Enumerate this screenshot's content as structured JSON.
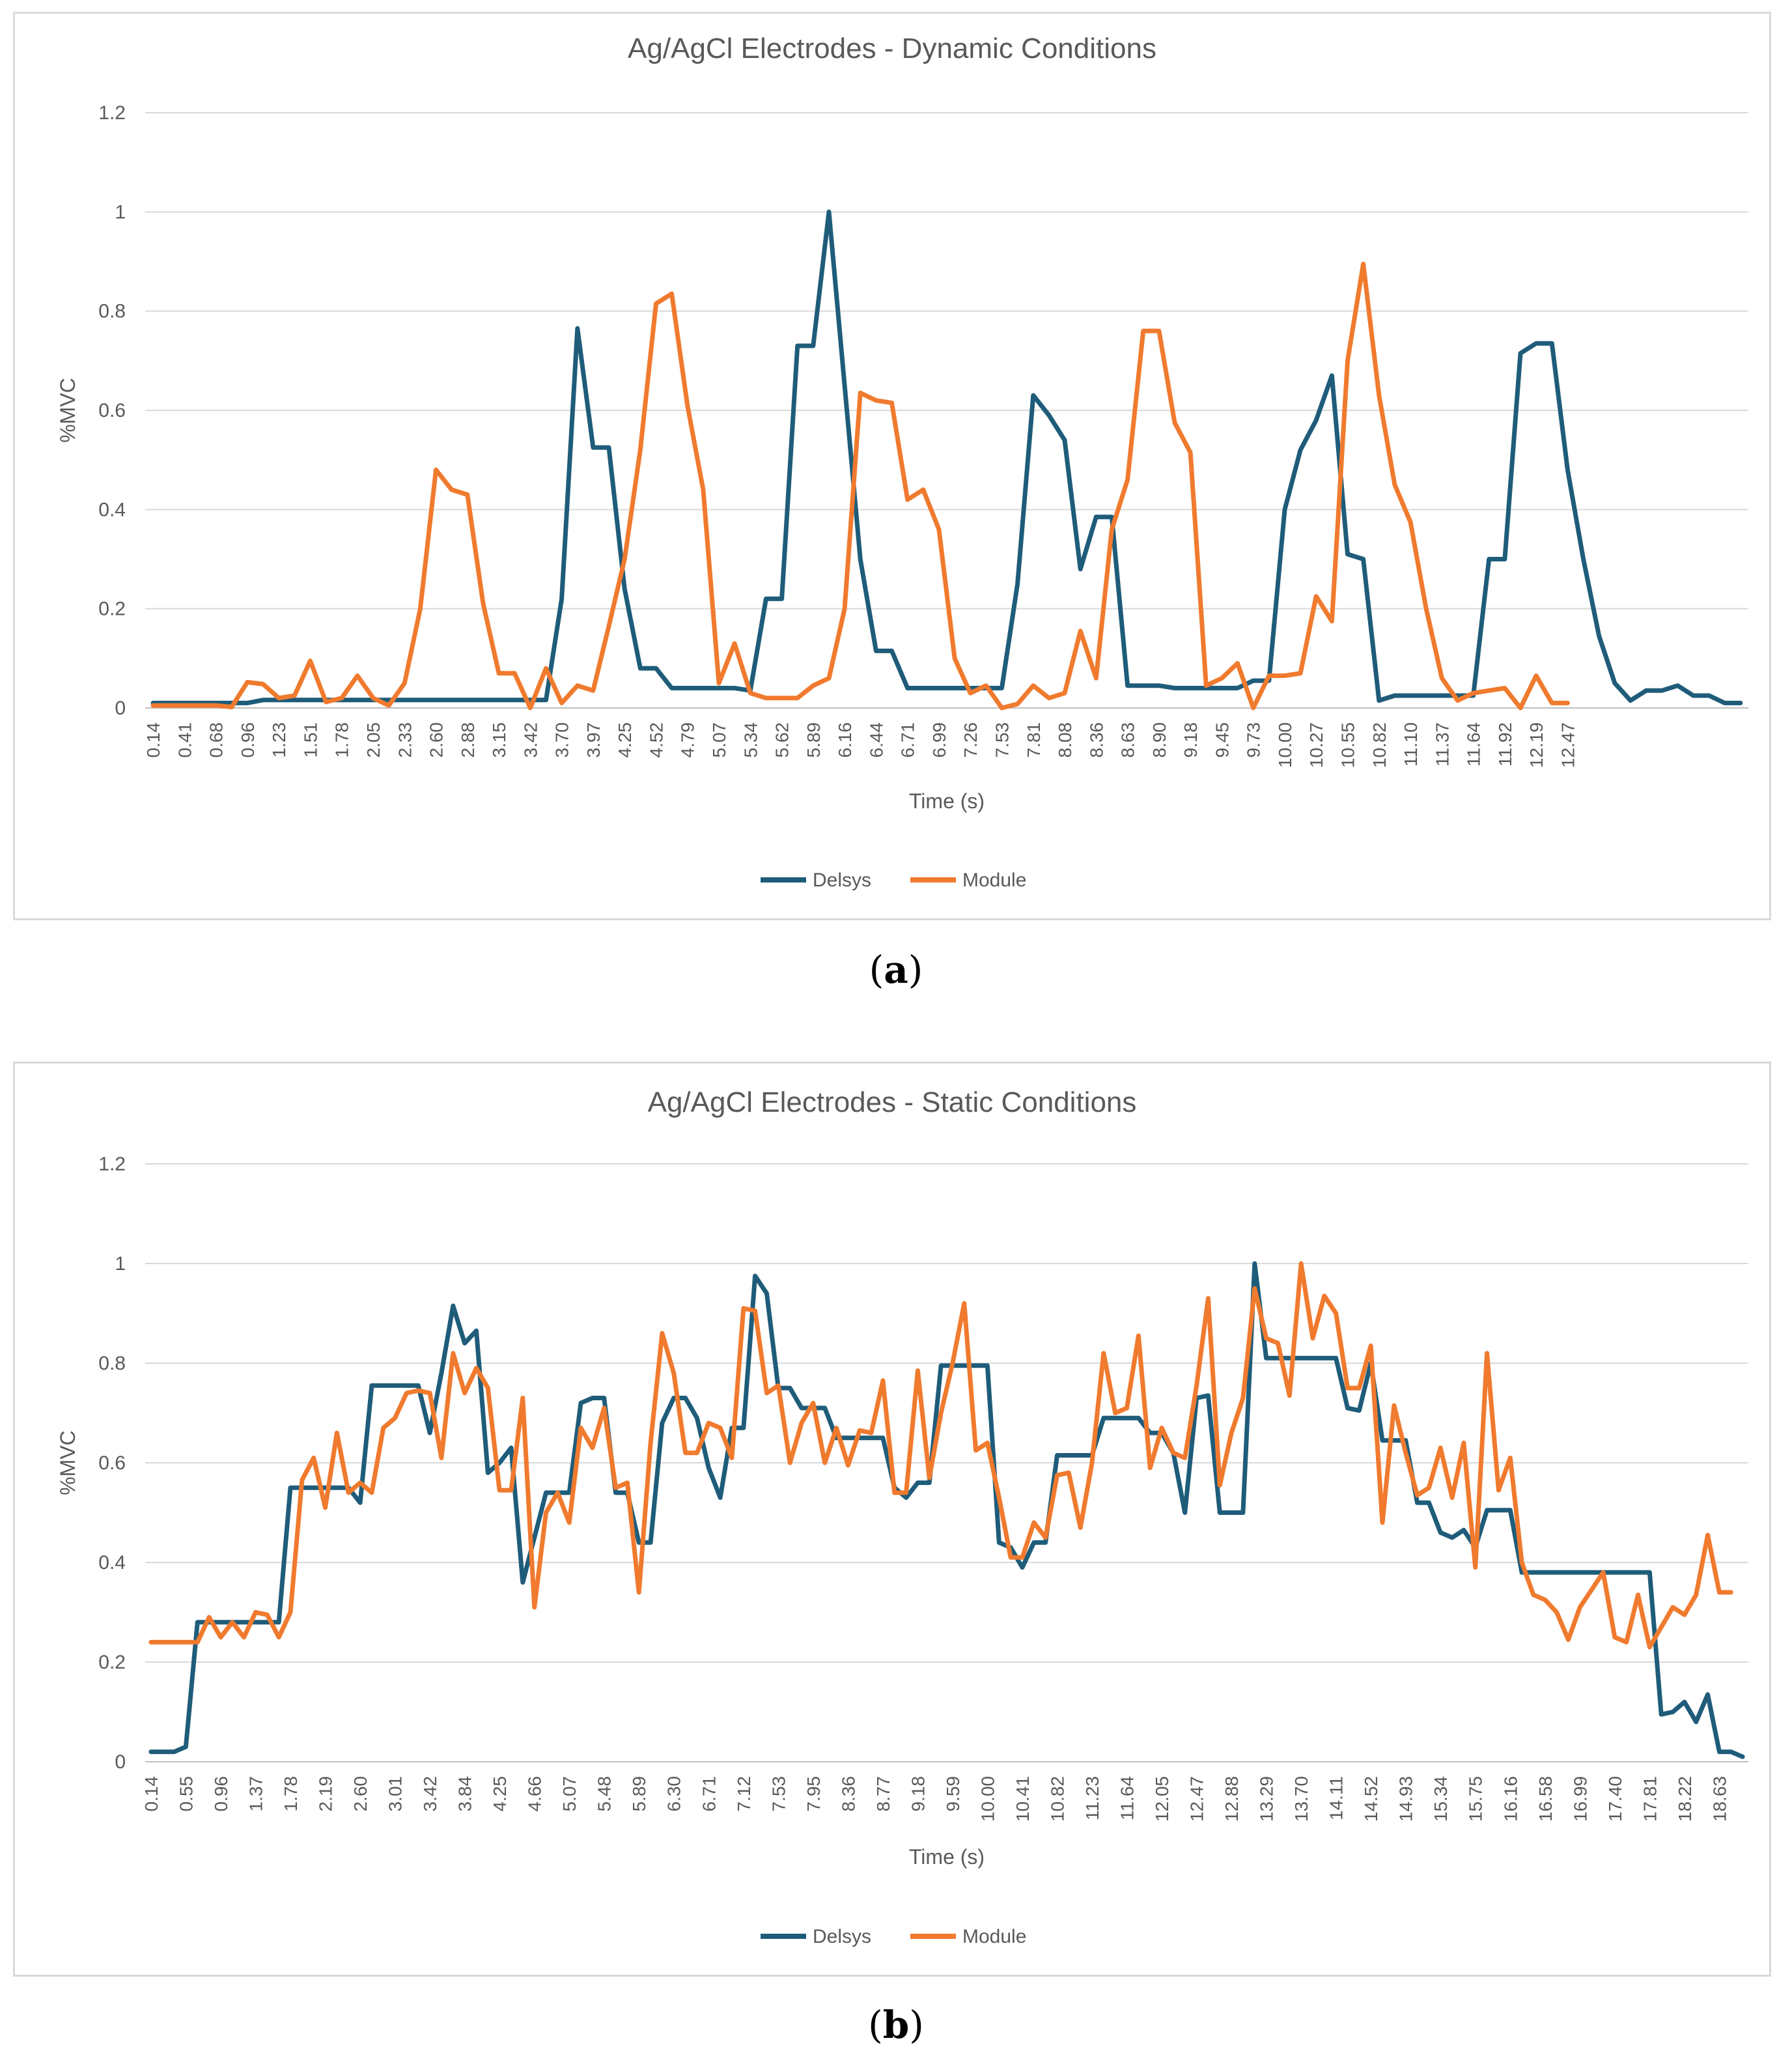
{
  "chart_data": [
    {
      "type": "line",
      "title": "Ag/AgCl Electrodes - Dynamic Conditions",
      "xlabel": "Time (s)",
      "ylabel": "%MVC",
      "ylim": [
        0,
        1.2
      ],
      "yticks": [
        "0",
        "0.2",
        "0.4",
        "0.6",
        "0.8",
        "1",
        "1.2"
      ],
      "grid": true,
      "legend": "bottom-center",
      "caption": "(a)",
      "caption_letter": "a",
      "tick_labels": [
        "0.14",
        "0.41",
        "0.68",
        "0.96",
        "1.23",
        "1.51",
        "1.78",
        "2.05",
        "2.33",
        "2.60",
        "2.88",
        "3.15",
        "3.42",
        "3.70",
        "3.97",
        "4.25",
        "4.52",
        "4.79",
        "5.07",
        "5.34",
        "5.62",
        "5.89",
        "6.16",
        "6.44",
        "6.71",
        "6.99",
        "7.26",
        "7.53",
        "7.81",
        "8.08",
        "8.36",
        "8.63",
        "8.90",
        "9.18",
        "9.45",
        "9.73",
        "10.00",
        "10.27",
        "10.55",
        "10.82",
        "11.10",
        "11.37",
        "11.64",
        "11.92",
        "12.19",
        "12.47"
      ],
      "points_per_tick": 2,
      "series": [
        {
          "name": "Delsys",
          "color": "#1f5c7a",
          "values": [
            0.01,
            0.01,
            0.01,
            0.01,
            0.01,
            0.01,
            0.01,
            0.016,
            0.016,
            0.016,
            0.016,
            0.016,
            0.016,
            0.016,
            0.016,
            0.016,
            0.016,
            0.016,
            0.016,
            0.016,
            0.016,
            0.016,
            0.016,
            0.016,
            0.016,
            0.016,
            0.22,
            0.765,
            0.525,
            0.525,
            0.24,
            0.08,
            0.08,
            0.04,
            0.04,
            0.04,
            0.04,
            0.04,
            0.035,
            0.22,
            0.22,
            0.73,
            0.73,
            1.0,
            0.65,
            0.3,
            0.115,
            0.115,
            0.04,
            0.04,
            0.04,
            0.04,
            0.04,
            0.04,
            0.04,
            0.25,
            0.63,
            0.59,
            0.54,
            0.28,
            0.385,
            0.385,
            0.045,
            0.045,
            0.045,
            0.04,
            0.04,
            0.04,
            0.04,
            0.04,
            0.055,
            0.055,
            0.4,
            0.52,
            0.58,
            0.67,
            0.31,
            0.3,
            0.015,
            0.025,
            0.025,
            0.025,
            0.025,
            0.025,
            0.025,
            0.3,
            0.3,
            0.715,
            0.735,
            0.735,
            0.48,
            0.3,
            0.145,
            0.05,
            0.015,
            0.035,
            0.035,
            0.045,
            0.025,
            0.025,
            0.01,
            0.01
          ]
        },
        {
          "name": "Module",
          "color": "#f07a2e",
          "values": [
            0.005,
            0.005,
            0.005,
            0.005,
            0.005,
            0.002,
            0.052,
            0.048,
            0.02,
            0.025,
            0.095,
            0.012,
            0.02,
            0.065,
            0.02,
            0.005,
            0.05,
            0.2,
            0.48,
            0.44,
            0.43,
            0.21,
            0.07,
            0.07,
            0.0,
            0.08,
            0.01,
            0.045,
            0.035,
            0.165,
            0.3,
            0.52,
            0.815,
            0.835,
            0.61,
            0.44,
            0.05,
            0.13,
            0.03,
            0.02,
            0.02,
            0.02,
            0.045,
            0.06,
            0.2,
            0.635,
            0.62,
            0.615,
            0.42,
            0.44,
            0.36,
            0.1,
            0.03,
            0.045,
            0.0,
            0.008,
            0.045,
            0.02,
            0.03,
            0.155,
            0.06,
            0.36,
            0.46,
            0.76,
            0.76,
            0.575,
            0.515,
            0.045,
            0.06,
            0.09,
            0.0,
            0.065,
            0.065,
            0.07,
            0.225,
            0.175,
            0.7,
            0.895,
            0.63,
            0.45,
            0.375,
            0.2,
            0.06,
            0.015,
            0.03,
            0.035,
            0.04,
            0.0,
            0.065,
            0.01,
            0.01
          ]
        }
      ]
    },
    {
      "type": "line",
      "title": "Ag/AgCl Electrodes - Static Conditions",
      "xlabel": "Time (s)",
      "ylabel": "%MVC",
      "ylim": [
        0,
        1.2
      ],
      "yticks": [
        "0",
        "0.2",
        "0.4",
        "0.6",
        "0.8",
        "1",
        "1.2"
      ],
      "grid": true,
      "legend": "bottom-center",
      "caption": "(b)",
      "caption_letter": "b",
      "tick_labels": [
        "0.14",
        "0.55",
        "0.96",
        "1.37",
        "1.78",
        "2.19",
        "2.60",
        "3.01",
        "3.42",
        "3.84",
        "4.25",
        "4.66",
        "5.07",
        "5.48",
        "5.89",
        "6.30",
        "6.71",
        "7.12",
        "7.53",
        "7.95",
        "8.36",
        "8.77",
        "9.18",
        "9.59",
        "10.00",
        "10.41",
        "10.82",
        "11.23",
        "11.64",
        "12.05",
        "12.47",
        "12.88",
        "13.29",
        "13.70",
        "14.11",
        "14.52",
        "14.93",
        "15.34",
        "15.75",
        "16.16",
        "16.58",
        "16.99",
        "17.40",
        "17.81",
        "18.22",
        "18.63"
      ],
      "points_per_tick": 3,
      "series": [
        {
          "name": "Delsys",
          "color": "#1f5c7a",
          "values": [
            0.02,
            0.02,
            0.02,
            0.03,
            0.28,
            0.28,
            0.28,
            0.28,
            0.28,
            0.28,
            0.28,
            0.28,
            0.55,
            0.55,
            0.55,
            0.55,
            0.55,
            0.55,
            0.52,
            0.755,
            0.755,
            0.755,
            0.755,
            0.755,
            0.66,
            0.78,
            0.915,
            0.84,
            0.865,
            0.58,
            0.6,
            0.63,
            0.36,
            0.45,
            0.54,
            0.54,
            0.54,
            0.72,
            0.73,
            0.73,
            0.54,
            0.54,
            0.44,
            0.44,
            0.68,
            0.73,
            0.73,
            0.69,
            0.59,
            0.53,
            0.67,
            0.67,
            0.975,
            0.94,
            0.75,
            0.75,
            0.71,
            0.71,
            0.71,
            0.65,
            0.65,
            0.65,
            0.65,
            0.65,
            0.55,
            0.53,
            0.56,
            0.56,
            0.795,
            0.795,
            0.795,
            0.795,
            0.795,
            0.44,
            0.43,
            0.39,
            0.44,
            0.44,
            0.615,
            0.615,
            0.615,
            0.615,
            0.69,
            0.69,
            0.69,
            0.69,
            0.66,
            0.66,
            0.62,
            0.5,
            0.73,
            0.735,
            0.5,
            0.5,
            0.5,
            1.0,
            0.81,
            0.81,
            0.81,
            0.81,
            0.81,
            0.81,
            0.81,
            0.71,
            0.705,
            0.8,
            0.645,
            0.645,
            0.645,
            0.52,
            0.52,
            0.46,
            0.45,
            0.465,
            0.43,
            0.505,
            0.505,
            0.505,
            0.38,
            0.38,
            0.38,
            0.38,
            0.38,
            0.38,
            0.38,
            0.38,
            0.38,
            0.38,
            0.38,
            0.38,
            0.095,
            0.1,
            0.12,
            0.08,
            0.135,
            0.02,
            0.02,
            0.01
          ]
        },
        {
          "name": "Module",
          "color": "#f07a2e",
          "values": [
            0.24,
            0.24,
            0.24,
            0.24,
            0.24,
            0.29,
            0.25,
            0.28,
            0.25,
            0.3,
            0.295,
            0.25,
            0.3,
            0.565,
            0.61,
            0.51,
            0.66,
            0.54,
            0.56,
            0.54,
            0.67,
            0.69,
            0.74,
            0.745,
            0.74,
            0.61,
            0.82,
            0.74,
            0.79,
            0.75,
            0.545,
            0.545,
            0.73,
            0.31,
            0.5,
            0.54,
            0.48,
            0.67,
            0.63,
            0.71,
            0.55,
            0.56,
            0.34,
            0.64,
            0.86,
            0.78,
            0.62,
            0.62,
            0.68,
            0.67,
            0.61,
            0.91,
            0.905,
            0.74,
            0.755,
            0.6,
            0.68,
            0.72,
            0.6,
            0.67,
            0.595,
            0.665,
            0.66,
            0.765,
            0.54,
            0.54,
            0.785,
            0.57,
            0.7,
            0.8,
            0.92,
            0.625,
            0.64,
            0.53,
            0.41,
            0.41,
            0.48,
            0.45,
            0.575,
            0.58,
            0.47,
            0.6,
            0.82,
            0.7,
            0.71,
            0.855,
            0.59,
            0.67,
            0.62,
            0.61,
            0.755,
            0.93,
            0.555,
            0.66,
            0.73,
            0.95,
            0.85,
            0.84,
            0.735,
            1.0,
            0.85,
            0.935,
            0.9,
            0.75,
            0.75,
            0.835,
            0.48,
            0.715,
            0.62,
            0.535,
            0.55,
            0.63,
            0.53,
            0.64,
            0.39,
            0.82,
            0.545,
            0.61,
            0.4,
            0.335,
            0.325,
            0.3,
            0.245,
            0.31,
            0.345,
            0.38,
            0.25,
            0.24,
            0.335,
            0.23,
            0.27,
            0.31,
            0.295,
            0.335,
            0.455,
            0.34,
            0.34
          ]
        }
      ]
    }
  ]
}
